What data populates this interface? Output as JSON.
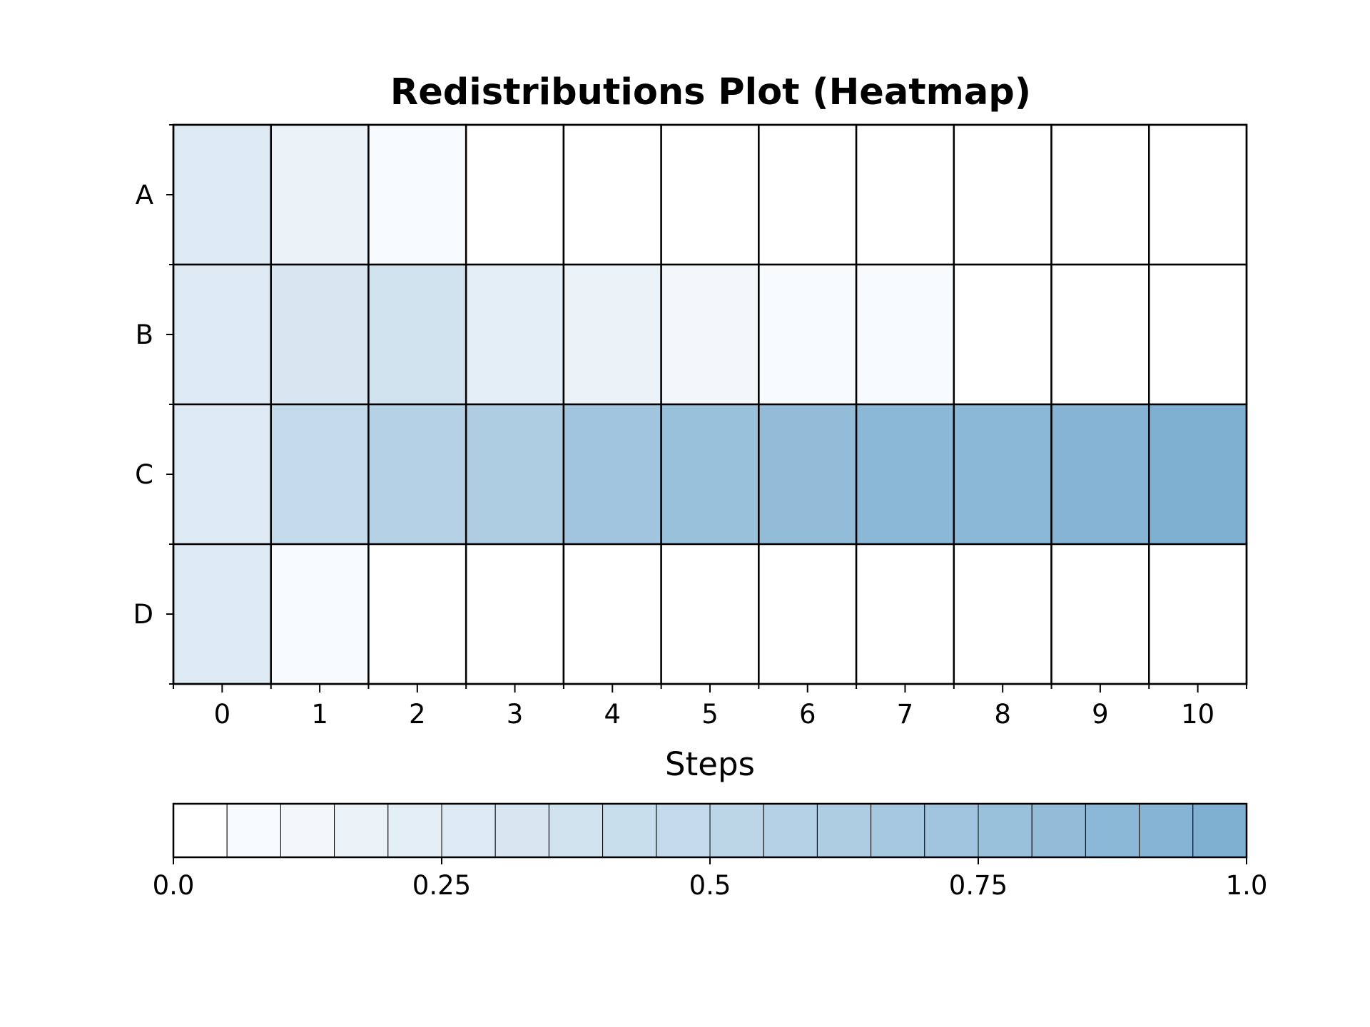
{
  "chart_data": {
    "type": "heatmap",
    "title": "Redistributions Plot (Heatmap)",
    "xlabel": "Steps",
    "ylabel": "",
    "x_categories": [
      "0",
      "1",
      "2",
      "3",
      "4",
      "5",
      "6",
      "7",
      "8",
      "9",
      "10"
    ],
    "y_categories": [
      "A",
      "B",
      "C",
      "D"
    ],
    "values": [
      [
        0.25,
        0.18,
        0.06,
        0.0,
        0.0,
        0.0,
        0.0,
        0.0,
        0.0,
        0.0,
        0.0
      ],
      [
        0.25,
        0.33,
        0.39,
        0.22,
        0.17,
        0.12,
        0.07,
        0.05,
        0.0,
        0.0,
        0.0
      ],
      [
        0.25,
        0.48,
        0.55,
        0.64,
        0.71,
        0.77,
        0.83,
        0.86,
        0.89,
        0.93,
        0.96
      ],
      [
        0.25,
        0.06,
        0.0,
        0.0,
        0.0,
        0.0,
        0.0,
        0.0,
        0.0,
        0.0,
        0.0
      ]
    ],
    "colorbar": {
      "min": 0.0,
      "max": 1.0,
      "levels": 20,
      "tick_values": [
        0.0,
        0.25,
        0.5,
        0.75,
        1.0
      ],
      "tick_labels": [
        "0.0",
        "0.25",
        "0.5",
        "0.75",
        "1.0"
      ],
      "color_low": "#ffffff",
      "color_high": "#7fb0d2"
    },
    "grid": true,
    "cell_edge_color": "#000000"
  }
}
